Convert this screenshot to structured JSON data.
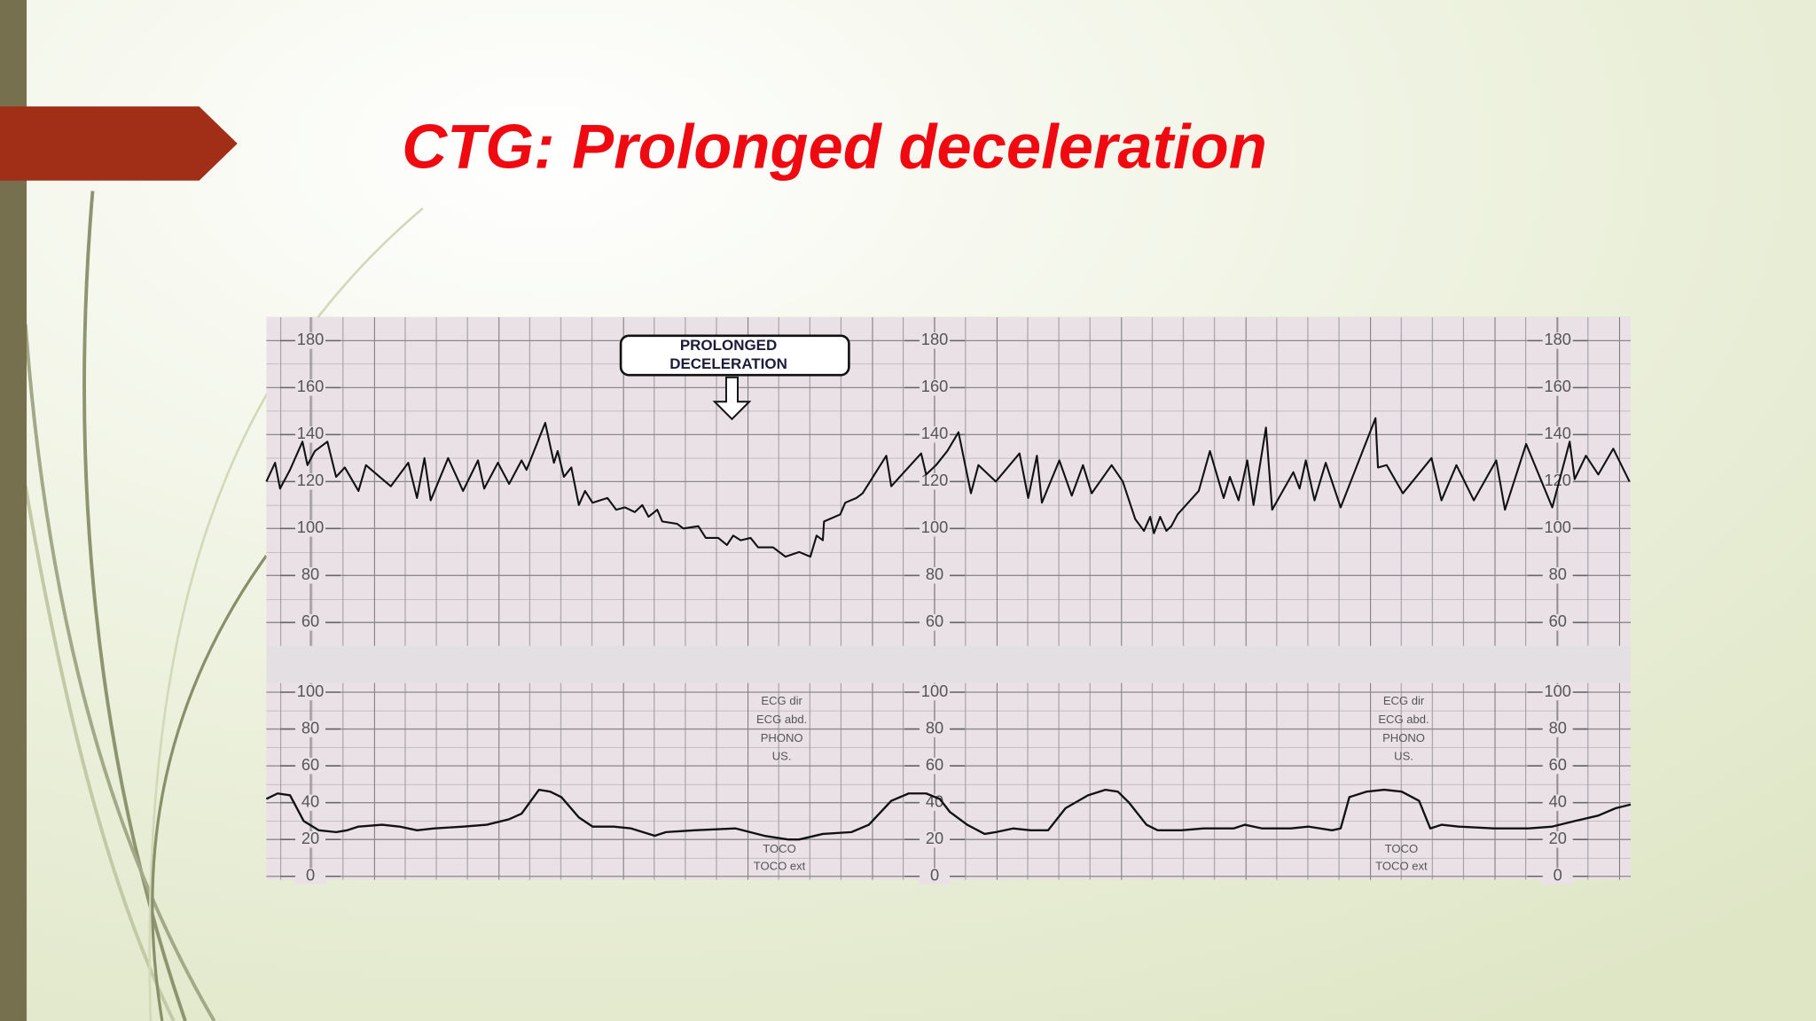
{
  "header": {
    "title": "CTG: Prolonged deceleration"
  },
  "chart_data": [
    {
      "type": "line",
      "annotation": [
        "PROLONGED",
        "DECELERATION"
      ],
      "x": [
        0,
        0.07,
        0.11,
        0.19,
        0.29,
        0.33,
        0.39,
        0.49,
        0.56,
        0.63,
        0.74,
        0.8,
        0.91,
        1.0,
        1.14,
        1.21,
        1.27,
        1.32,
        1.46,
        1.58,
        1.7,
        1.75,
        1.86,
        1.95,
        2.05,
        2.09,
        2.24,
        2.31,
        2.34,
        2.39,
        2.45,
        2.51,
        2.56,
        2.62,
        2.74,
        2.81,
        2.88,
        2.96,
        3.02,
        3.07,
        3.14,
        3.18,
        3.3,
        3.35,
        3.47,
        3.53,
        3.63,
        3.7,
        3.75,
        3.81,
        3.89,
        3.95,
        4.07,
        4.17,
        4.28,
        4.37,
        4.42,
        4.47,
        4.48,
        4.61,
        4.65,
        4.74,
        4.79,
        4.98,
        5.02,
        5.26,
        5.3,
        5.38,
        5.47,
        5.56,
        5.66,
        5.72,
        5.86,
        6.05,
        6.12,
        6.19,
        6.23,
        6.37,
        6.47,
        6.56,
        6.63,
        6.79,
        6.88,
        6.98,
        7.05,
        7.1,
        7.13,
        7.18,
        7.23,
        7.27,
        7.32,
        7.49,
        7.58,
        7.69,
        7.74,
        7.81,
        7.88,
        7.93,
        8.03,
        8.08,
        8.25,
        8.3,
        8.35,
        8.42,
        8.51,
        8.63,
        8.91,
        8.93,
        9.0,
        9.13,
        9.36,
        9.44,
        9.56,
        9.7,
        9.88,
        9.95,
        10.12,
        10.33,
        10.47,
        10.51,
        10.6,
        10.7,
        10.82,
        10.95
      ],
      "series": [
        {
          "color": "#111111",
          "values": [
            120,
            128,
            117,
            125,
            137,
            127,
            133,
            137,
            122,
            126,
            116,
            127,
            122,
            118,
            128,
            113,
            130,
            112,
            130,
            116,
            129,
            117,
            128,
            119,
            129,
            125,
            145,
            128,
            133,
            122,
            126,
            110,
            116,
            111,
            113,
            108,
            109,
            107,
            110,
            105,
            108,
            103,
            102,
            100,
            101,
            96,
            96,
            93,
            97,
            95,
            96,
            92,
            92,
            88,
            90,
            88,
            97,
            95,
            103,
            106,
            111,
            113,
            115,
            131,
            118,
            132,
            123,
            127,
            133,
            141,
            115,
            127,
            120,
            132,
            113,
            131,
            111,
            129,
            114,
            127,
            115,
            127,
            120,
            104,
            99,
            105,
            98,
            105,
            99,
            101,
            106,
            116,
            133,
            113,
            122,
            112,
            129,
            110,
            143,
            108,
            124,
            117,
            129,
            112,
            128,
            109,
            147,
            126,
            127,
            115,
            130,
            112,
            127,
            112,
            129,
            108,
            136,
            109,
            137,
            121,
            131,
            123,
            134,
            120
          ]
        }
      ],
      "xlim": [
        0,
        10.96
      ],
      "ylim": [
        50,
        190
      ],
      "yticks": [
        60,
        80,
        100,
        120,
        140,
        160,
        180
      ]
    },
    {
      "type": "line",
      "labels": [
        "ECG dir",
        "ECG abd.",
        "PHONO",
        "US."
      ],
      "footer_labels": [
        "TOCO",
        "TOCO ext"
      ],
      "x": [
        0,
        0.09,
        0.19,
        0.3,
        0.42,
        0.56,
        0.65,
        0.74,
        0.93,
        1.07,
        1.21,
        1.35,
        1.58,
        1.77,
        1.95,
        2.05,
        2.19,
        2.28,
        2.37,
        2.51,
        2.62,
        2.79,
        2.93,
        3.12,
        3.21,
        3.44,
        3.77,
        4.0,
        4.19,
        4.28,
        4.47,
        4.7,
        4.84,
        5.02,
        5.16,
        5.3,
        5.41,
        5.49,
        5.63,
        5.77,
        5.86,
        6.0,
        6.14,
        6.28,
        6.42,
        6.6,
        6.74,
        6.84,
        6.93,
        7.07,
        7.16,
        7.35,
        7.53,
        7.77,
        7.86,
        8.0,
        8.23,
        8.37,
        8.56,
        8.63,
        8.7,
        8.84,
        8.98,
        9.12,
        9.26,
        9.35,
        9.44,
        9.58,
        9.86,
        10.14,
        10.33,
        10.51,
        10.7,
        10.84,
        10.96
      ],
      "series": [
        {
          "color": "#111111",
          "values": [
            42,
            45,
            44,
            30,
            25,
            24,
            25,
            27,
            28,
            27,
            25,
            26,
            27,
            28,
            31,
            34,
            47,
            46,
            43,
            32,
            27,
            27,
            26,
            22,
            24,
            25,
            26,
            22,
            20,
            20,
            23,
            24,
            28,
            41,
            45,
            45,
            42,
            35,
            28,
            23,
            24,
            26,
            25,
            25,
            37,
            44,
            47,
            46,
            40,
            28,
            25,
            25,
            26,
            26,
            28,
            26,
            26,
            27,
            25,
            26,
            43,
            46,
            47,
            46,
            41,
            26,
            28,
            27,
            26,
            26,
            27,
            30,
            33,
            37,
            39
          ]
        }
      ],
      "xlim": [
        0,
        10.96
      ],
      "ylim": [
        0,
        105
      ],
      "yticks": [
        0,
        20,
        40,
        60,
        80,
        100
      ]
    }
  ]
}
